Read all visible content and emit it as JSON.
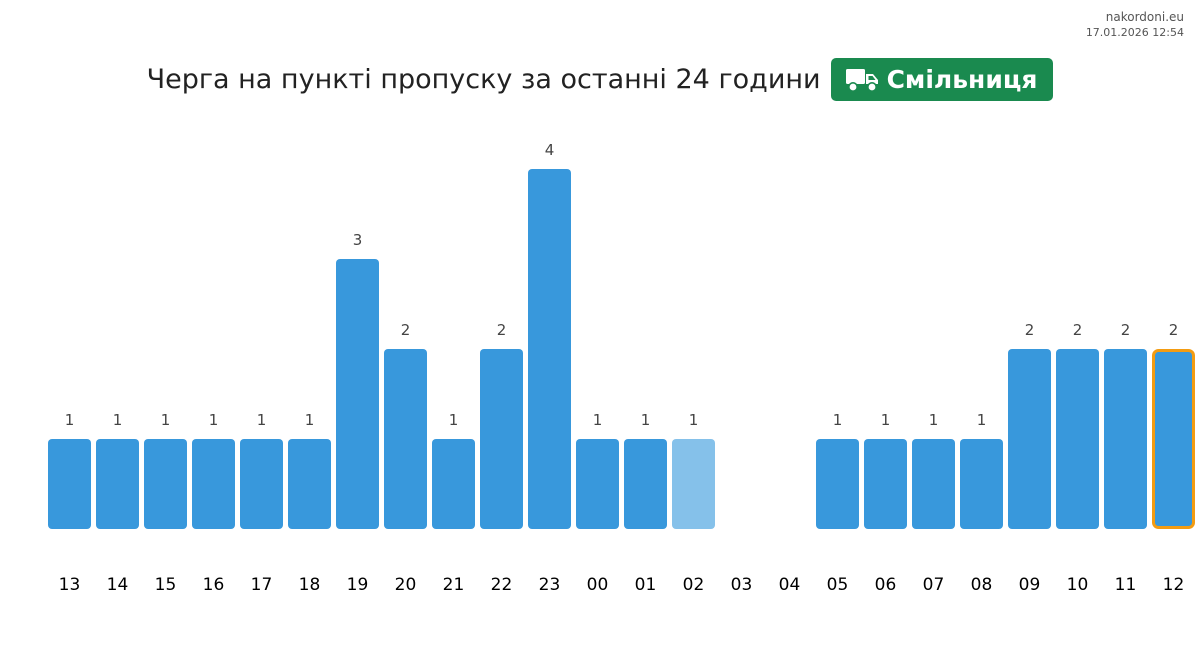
{
  "watermark": {
    "site": "nakordoni.eu",
    "timestamp": "17.01.2026 12:54"
  },
  "header": {
    "title": "Черга на пункті пропуску за останні 24 години",
    "checkpoint": "Смільниця",
    "checkpoint_icon": "truck-icon",
    "checkpoint_color": "#1a8a4f"
  },
  "colors": {
    "bar": "#3898dc",
    "bar_light": "#85c1ea",
    "current_border": "#f39c12"
  },
  "chart_data": {
    "type": "bar",
    "title": "Черга на пункті пропуску за останні 24 години",
    "categories": [
      "13",
      "14",
      "15",
      "16",
      "17",
      "18",
      "19",
      "20",
      "21",
      "22",
      "23",
      "00",
      "01",
      "02",
      "03",
      "04",
      "05",
      "06",
      "07",
      "08",
      "09",
      "10",
      "11",
      "12"
    ],
    "values": [
      1,
      1,
      1,
      1,
      1,
      1,
      3,
      2,
      1,
      2,
      4,
      1,
      1,
      1,
      null,
      null,
      1,
      1,
      1,
      1,
      2,
      2,
      2,
      2
    ],
    "highlight_light_index": 13,
    "highlight_current_index": 23,
    "ylim": [
      0,
      4
    ],
    "grid": false,
    "legend": "none"
  }
}
